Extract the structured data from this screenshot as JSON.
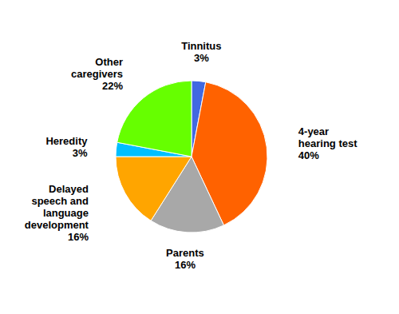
{
  "chart_data": {
    "type": "pie",
    "categories": [
      "Tinnitus\n3%",
      "4-year\nhearing test\n40%",
      "Parents\n16%",
      "Delayed\nspeech and\nlanguage\ndevelopment\n16%",
      "Heredity\n3%",
      "Other\ncaregivers\n22%"
    ],
    "values": [
      3,
      40,
      16,
      16,
      3,
      22
    ],
    "colors": [
      "#4169E1",
      "#FF6200",
      "#A8A8A8",
      "#FFA500",
      "#00BFFF",
      "#66FF00"
    ]
  }
}
